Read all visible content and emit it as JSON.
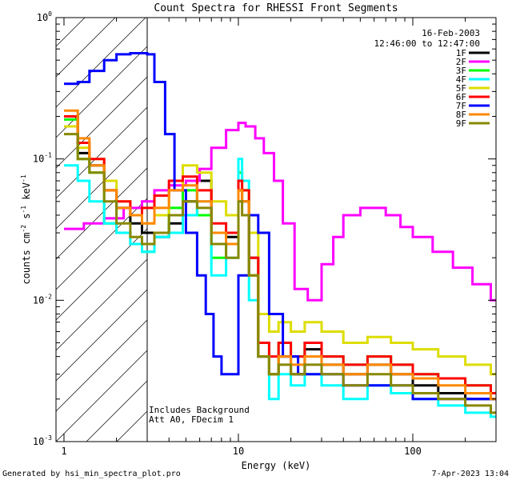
{
  "chart_data": {
    "type": "line",
    "title": "Count Spectra for RHESSI Front Segments",
    "xlabel": "Energy (keV)",
    "ylabel": "counts cm-2 s-1 keV-1",
    "ylabel_parts": {
      "base": "counts cm",
      "e1": "-2",
      "mid1": " s",
      "e2": "-1",
      "mid2": " keV",
      "e3": "-1"
    },
    "xscale": "log",
    "yscale": "log",
    "xlim": [
      0.9,
      300
    ],
    "ylim": [
      0.001,
      1
    ],
    "x_ticks": [
      {
        "value": 1,
        "label": "1"
      },
      {
        "value": 10,
        "label": "10"
      },
      {
        "value": 100,
        "label": "100"
      }
    ],
    "y_ticks": [
      {
        "value": 1,
        "base": "10",
        "exp": "0"
      },
      {
        "value": 0.1,
        "base": "10",
        "exp": "-1"
      },
      {
        "value": 0.01,
        "base": "10",
        "exp": "-2"
      },
      {
        "value": 0.001,
        "base": "10",
        "exp": "-3"
      }
    ],
    "legend": {
      "position": "top-right",
      "date": "16-Feb-2003",
      "time_range": "12:46:00 to 12:47:00"
    },
    "annotations": [
      "Includes Background",
      "Att A0, FDecim 1"
    ],
    "shaded_region": {
      "x_start": 0.9,
      "x_end": 3,
      "style": "diagonal-hatch"
    },
    "footer_left": "Generated by hsi_min_spectra_plot.pro",
    "footer_right": "7-Apr-2023 13:04",
    "series": [
      {
        "name": "1F",
        "color": "#000000",
        "x": [
          1,
          1.2,
          1.4,
          1.7,
          2,
          2.4,
          2.8,
          3.3,
          4,
          4.8,
          5.8,
          7,
          8.5,
          10,
          10.5,
          11.5,
          13,
          15,
          17,
          20,
          24,
          30,
          40,
          55,
          75,
          100,
          140,
          200,
          280
        ],
        "y": [
          0.2,
          0.11,
          0.09,
          0.06,
          0.045,
          0.035,
          0.03,
          0.028,
          0.035,
          0.05,
          0.07,
          0.03,
          0.028,
          0.06,
          0.05,
          0.02,
          0.004,
          0.003,
          0.004,
          0.003,
          0.0045,
          0.0035,
          0.003,
          0.0035,
          0.003,
          0.0025,
          0.0022,
          0.002,
          0.002
        ]
      },
      {
        "name": "2F",
        "color": "#ff00ff",
        "x": [
          1,
          1.3,
          1.7,
          2.2,
          2.8,
          3.3,
          4,
          5,
          6,
          7,
          8.5,
          10,
          11,
          12.5,
          14,
          16,
          18,
          21,
          25,
          30,
          35,
          40,
          50,
          60,
          70,
          85,
          100,
          130,
          170,
          220,
          280
        ],
        "y": [
          0.032,
          0.035,
          0.038,
          0.045,
          0.05,
          0.06,
          0.065,
          0.07,
          0.085,
          0.12,
          0.16,
          0.18,
          0.17,
          0.14,
          0.11,
          0.07,
          0.035,
          0.012,
          0.01,
          0.018,
          0.028,
          0.04,
          0.045,
          0.045,
          0.04,
          0.033,
          0.028,
          0.022,
          0.017,
          0.013,
          0.01
        ]
      },
      {
        "name": "3F",
        "color": "#00ff00",
        "x": [
          1,
          1.2,
          1.4,
          1.7,
          2,
          2.4,
          2.8,
          3.3,
          4,
          4.8,
          5.8,
          7,
          8.5,
          10,
          10.5,
          11.5,
          13,
          15,
          17,
          20,
          24,
          30,
          40,
          55,
          75,
          100,
          140,
          200,
          280
        ],
        "y": [
          0.19,
          0.1,
          0.08,
          0.035,
          0.03,
          0.025,
          0.022,
          0.03,
          0.045,
          0.06,
          0.04,
          0.02,
          0.025,
          0.08,
          0.06,
          0.015,
          0.005,
          0.003,
          0.005,
          0.004,
          0.005,
          0.004,
          0.0035,
          0.004,
          0.0035,
          0.003,
          0.0028,
          0.0025,
          0.0022
        ]
      },
      {
        "name": "4F",
        "color": "#00ffff",
        "x": [
          1,
          1.2,
          1.4,
          1.7,
          2,
          2.4,
          2.8,
          3.3,
          4,
          4.8,
          5.8,
          7,
          8.5,
          10,
          10.5,
          11.5,
          13,
          15,
          17,
          20,
          24,
          30,
          40,
          55,
          75,
          100,
          140,
          200,
          280
        ],
        "y": [
          0.09,
          0.07,
          0.05,
          0.035,
          0.03,
          0.025,
          0.022,
          0.028,
          0.03,
          0.04,
          0.05,
          0.015,
          0.02,
          0.1,
          0.07,
          0.01,
          0.004,
          0.002,
          0.003,
          0.0025,
          0.003,
          0.0025,
          0.002,
          0.0025,
          0.0022,
          0.002,
          0.0018,
          0.0016,
          0.0015
        ]
      },
      {
        "name": "5F",
        "color": "#dddd00",
        "x": [
          1,
          1.2,
          1.4,
          1.7,
          2,
          2.4,
          2.8,
          3.3,
          4,
          4.8,
          5.8,
          7,
          8.5,
          10,
          10.5,
          11.5,
          13,
          15,
          17,
          20,
          24,
          30,
          40,
          55,
          75,
          100,
          140,
          200,
          280
        ],
        "y": [
          0.17,
          0.12,
          0.1,
          0.07,
          0.05,
          0.04,
          0.035,
          0.04,
          0.06,
          0.09,
          0.08,
          0.05,
          0.04,
          0.07,
          0.06,
          0.03,
          0.008,
          0.006,
          0.007,
          0.006,
          0.007,
          0.006,
          0.005,
          0.0055,
          0.005,
          0.0045,
          0.004,
          0.0035,
          0.003
        ]
      },
      {
        "name": "6F",
        "color": "#ff0000",
        "x": [
          1,
          1.2,
          1.4,
          1.7,
          2,
          2.4,
          2.8,
          3.3,
          4,
          4.8,
          5.8,
          7,
          8.5,
          10,
          10.5,
          11.5,
          13,
          15,
          17,
          20,
          24,
          30,
          40,
          55,
          75,
          100,
          140,
          200,
          280
        ],
        "y": [
          0.2,
          0.13,
          0.1,
          0.06,
          0.05,
          0.04,
          0.045,
          0.055,
          0.07,
          0.075,
          0.06,
          0.035,
          0.03,
          0.07,
          0.06,
          0.02,
          0.005,
          0.004,
          0.005,
          0.004,
          0.005,
          0.004,
          0.0035,
          0.004,
          0.0035,
          0.003,
          0.0028,
          0.0025,
          0.0022
        ]
      },
      {
        "name": "7F",
        "color": "#0000ff",
        "x": [
          1,
          1.2,
          1.4,
          1.7,
          2,
          2.4,
          2.8,
          3,
          3.3,
          3.8,
          4.3,
          5,
          5.8,
          6.5,
          7.2,
          8,
          9,
          10,
          11.5,
          13,
          15,
          18,
          22,
          28,
          40,
          60,
          100,
          160,
          240
        ],
        "y": [
          0.34,
          0.35,
          0.42,
          0.5,
          0.55,
          0.56,
          0.56,
          0.55,
          0.35,
          0.15,
          0.06,
          0.03,
          0.015,
          0.008,
          0.004,
          0.003,
          0.003,
          0.015,
          0.04,
          0.03,
          0.008,
          0.004,
          0.003,
          0.003,
          0.0025,
          0.0025,
          0.002,
          0.002,
          0.002
        ]
      },
      {
        "name": "8F",
        "color": "#ff8800",
        "x": [
          1,
          1.2,
          1.4,
          1.7,
          2,
          2.4,
          2.8,
          3.3,
          4,
          4.8,
          5.8,
          7,
          8.5,
          10,
          10.5,
          11.5,
          13,
          15,
          17,
          20,
          24,
          30,
          40,
          55,
          75,
          100,
          140,
          200,
          280
        ],
        "y": [
          0.22,
          0.14,
          0.09,
          0.06,
          0.045,
          0.04,
          0.035,
          0.045,
          0.06,
          0.065,
          0.05,
          0.03,
          0.025,
          0.06,
          0.05,
          0.015,
          0.004,
          0.003,
          0.004,
          0.0035,
          0.004,
          0.0035,
          0.003,
          0.0035,
          0.003,
          0.0028,
          0.0025,
          0.0022,
          0.002
        ]
      },
      {
        "name": "9F",
        "color": "#888800",
        "x": [
          1,
          1.2,
          1.4,
          1.7,
          2,
          2.4,
          2.8,
          3.3,
          4,
          4.8,
          5.8,
          7,
          8.5,
          10,
          10.5,
          11.5,
          13,
          15,
          17,
          20,
          24,
          30,
          40,
          55,
          75,
          100,
          140,
          200,
          280
        ],
        "y": [
          0.15,
          0.1,
          0.08,
          0.05,
          0.035,
          0.028,
          0.025,
          0.03,
          0.04,
          0.05,
          0.045,
          0.025,
          0.02,
          0.05,
          0.04,
          0.015,
          0.004,
          0.003,
          0.0035,
          0.003,
          0.0035,
          0.003,
          0.0025,
          0.003,
          0.0025,
          0.0022,
          0.002,
          0.0018,
          0.0016
        ]
      }
    ]
  }
}
